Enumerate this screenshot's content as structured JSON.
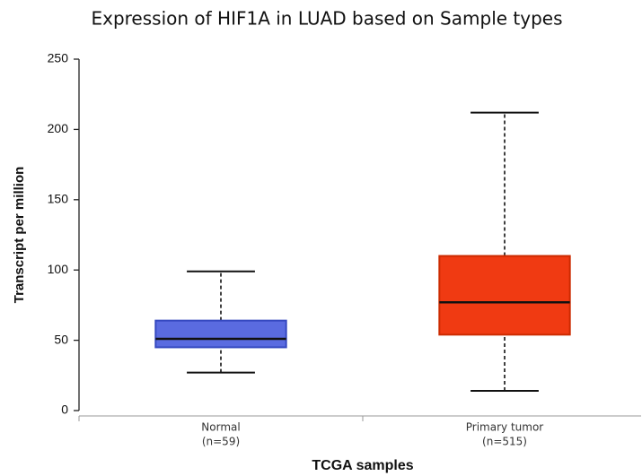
{
  "chart_data": {
    "type": "box",
    "title": "Expression of HIF1A in LUAD based on Sample types",
    "x_label": "TCGA samples",
    "y_label": "Transcript per million",
    "categories": [
      "Normal",
      "Primary tumor"
    ],
    "category_counts": [
      "(n=59)",
      "(n=515)"
    ],
    "series": [
      {
        "color": "#5a6be0",
        "edge": "#3549c0",
        "min": 27,
        "q1": 45,
        "median": 51,
        "q3": 64,
        "max": 99
      },
      {
        "color": "#f03a12",
        "edge": "#cc2a00",
        "min": 14,
        "q1": 54,
        "median": 77,
        "q3": 110,
        "max": 212
      }
    ],
    "ylim": [
      0,
      250
    ],
    "yticks": [
      0,
      50,
      100,
      150,
      200,
      250
    ]
  }
}
